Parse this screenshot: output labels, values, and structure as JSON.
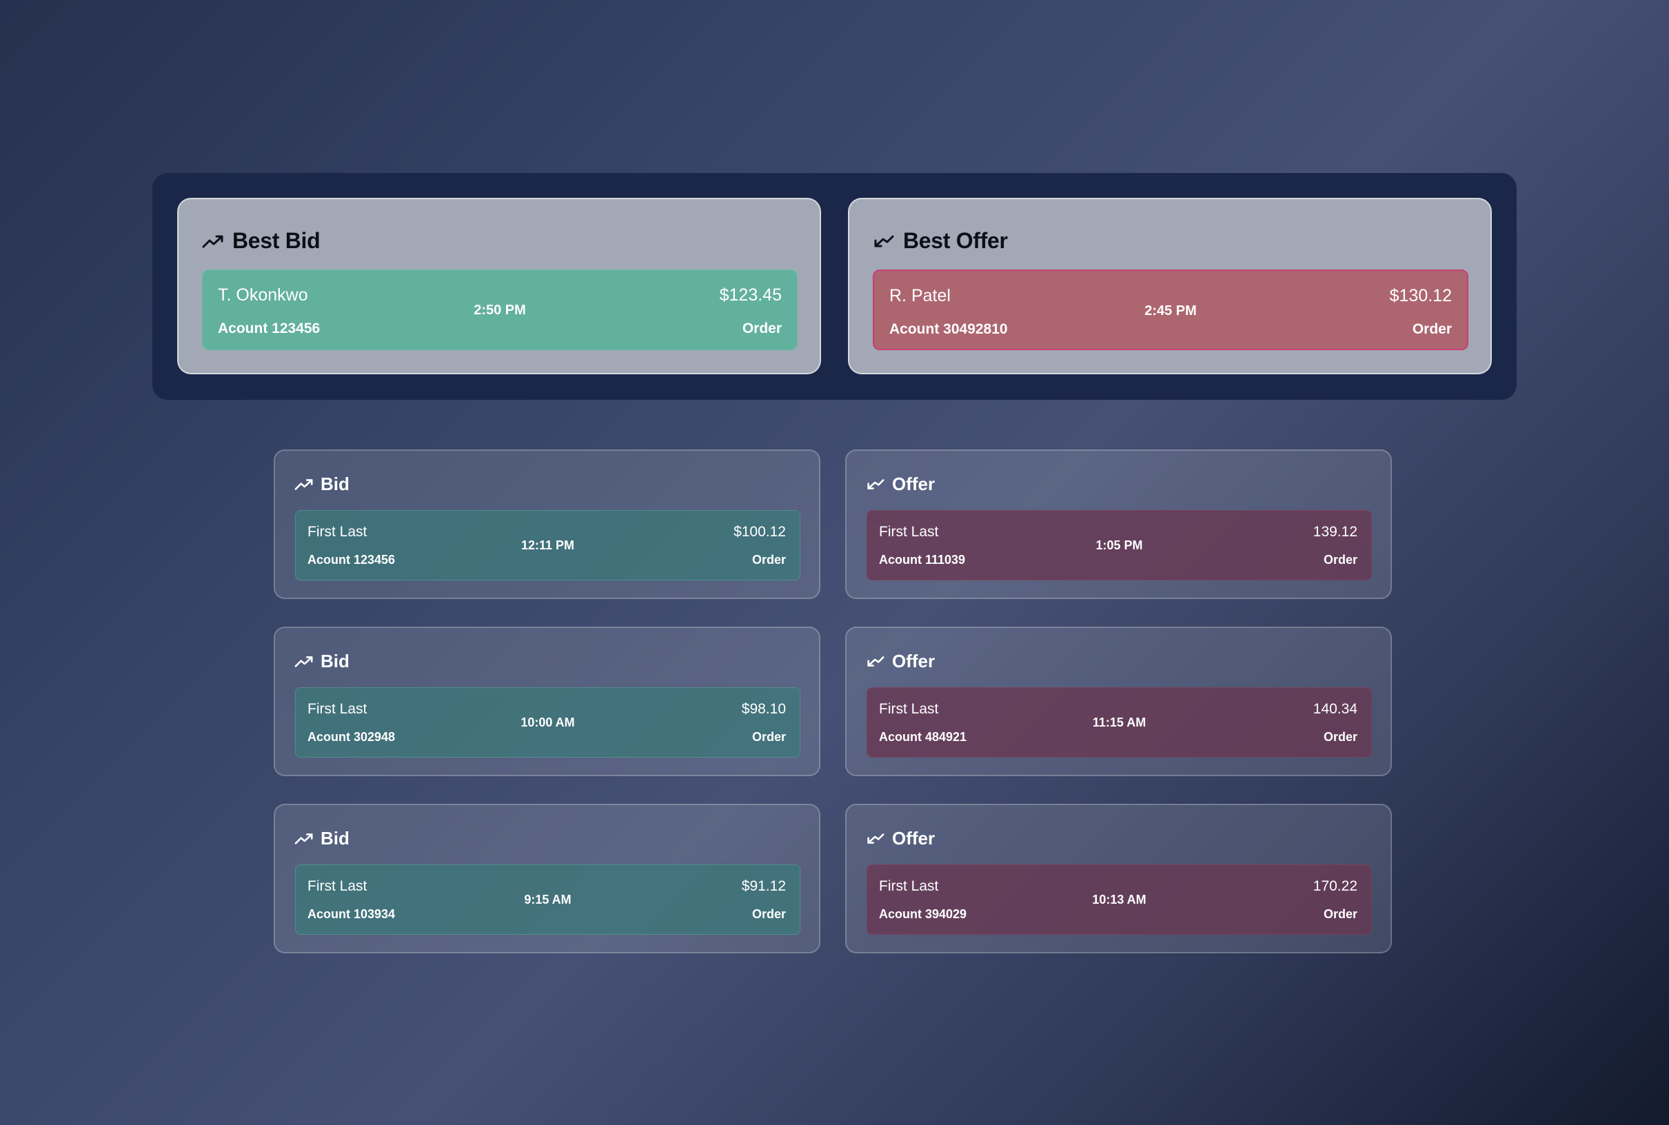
{
  "best_bid": {
    "title": "Best Bid",
    "icon": "trending-up-icon",
    "name": "T. Okonkwo",
    "account": "Acount 123456",
    "time": "2:50 PM",
    "price": "$123.45",
    "order": "Order"
  },
  "best_offer": {
    "title": "Best Offer",
    "icon": "trending-down-icon",
    "name": "R. Patel",
    "account": "Acount 30492810",
    "time": "2:45 PM",
    "price": "$130.12",
    "order": "Order"
  },
  "bids": [
    {
      "title": "Bid",
      "icon": "trending-up-icon",
      "name": "First Last",
      "account": "Acount 123456",
      "time": "12:11 PM",
      "price": "$100.12",
      "order": "Order"
    },
    {
      "title": "Bid",
      "icon": "trending-up-icon",
      "name": "First Last",
      "account": "Acount 302948",
      "time": "10:00 AM",
      "price": "$98.10",
      "order": "Order"
    },
    {
      "title": "Bid",
      "icon": "trending-up-icon",
      "name": "First Last",
      "account": "Acount 103934",
      "time": "9:15 AM",
      "price": "$91.12",
      "order": "Order"
    }
  ],
  "offers": [
    {
      "title": "Offer",
      "icon": "trending-down-icon",
      "name": "First Last",
      "account": "Acount 111039",
      "time": "1:05 PM",
      "price": "139.12",
      "order": "Order"
    },
    {
      "title": "Offer",
      "icon": "trending-down-icon",
      "name": "First Last",
      "account": "Acount 484921",
      "time": "11:15 AM",
      "price": "140.34",
      "order": "Order"
    },
    {
      "title": "Offer",
      "icon": "trending-down-icon",
      "name": "First Last",
      "account": "Acount 394029",
      "time": "10:13 AM",
      "price": "170.22",
      "order": "Order"
    }
  ],
  "colors": {
    "bid_accent": "#62b09e",
    "offer_accent": "#ad6670",
    "panel": "#1b2749"
  }
}
